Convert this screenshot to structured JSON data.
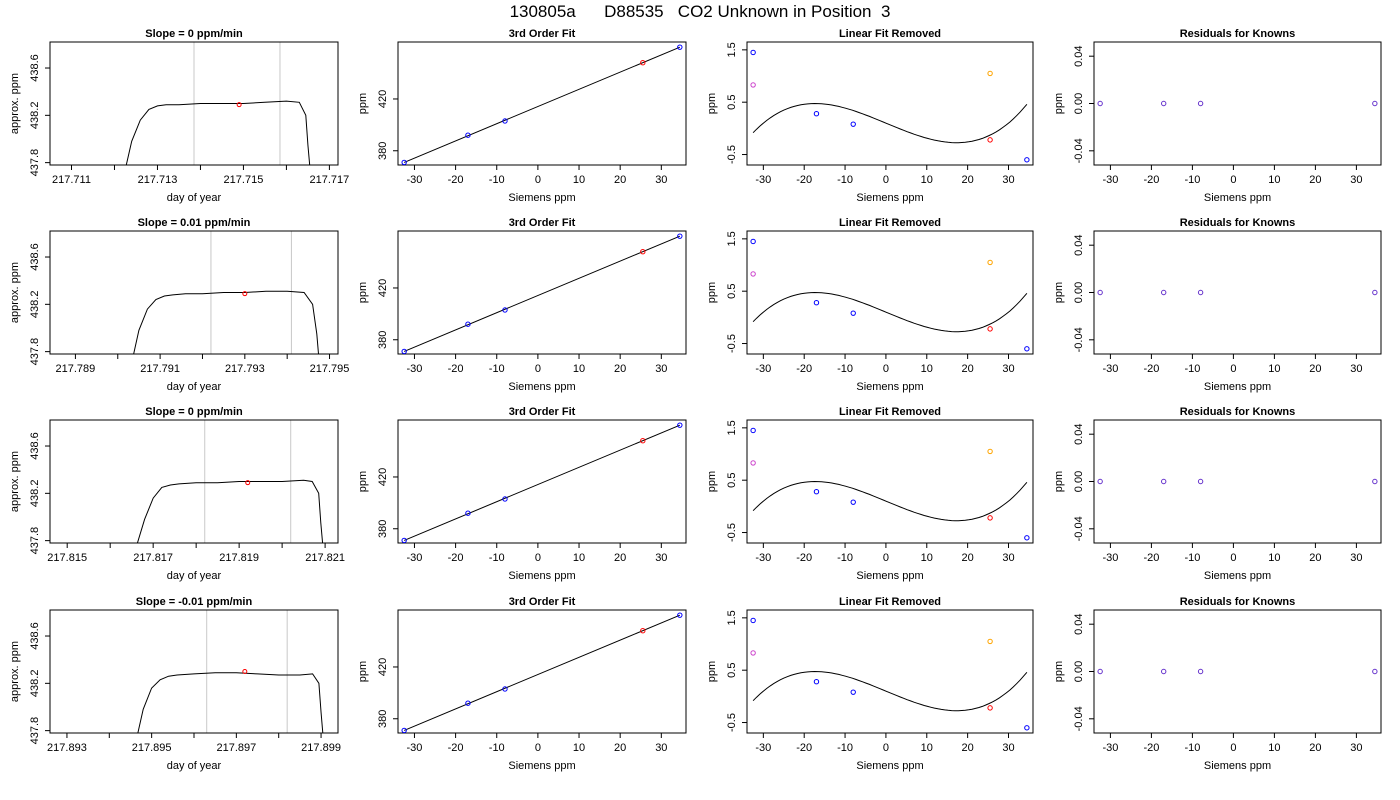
{
  "page_title": "130805a      D88535   CO2 Unknown in Position  3",
  "chart_data": [
    {
      "type": "line",
      "title": "Slope =  0  ppm/min",
      "xlabel": "day of year",
      "ylabel": "approx. ppm",
      "xlim": [
        217.7105,
        217.7172
      ],
      "ylim": [
        437.78,
        438.82
      ],
      "xticks": [
        217.711,
        217.712,
        217.713,
        217.714,
        217.715,
        217.716,
        217.717
      ],
      "xtick_labels": [
        "217.711",
        "",
        "217.713",
        "",
        "217.715",
        "",
        "217.717"
      ],
      "yticks": [
        437.8,
        438.2,
        438.6
      ],
      "ytick_labels": [
        "437.8",
        "438.2",
        "438.6"
      ],
      "vlines": [
        217.71385,
        217.71585
      ],
      "marker": [
        217.7149,
        438.29
      ],
      "series": [
        {
          "x": [
            217.71225,
            217.7124,
            217.7126,
            217.7128,
            217.713,
            217.7132,
            217.7135,
            217.714,
            217.7145,
            217.715,
            217.7155,
            217.716,
            217.7163,
            217.71645,
            217.7165,
            217.71655
          ],
          "y": [
            437.74,
            437.98,
            438.16,
            438.25,
            438.28,
            438.29,
            438.29,
            438.3,
            438.3,
            438.3,
            438.31,
            438.32,
            438.31,
            438.2,
            437.95,
            437.74
          ]
        }
      ]
    },
    {
      "type": "scatter",
      "title": "3rd Order Fit",
      "xlabel": "Siemens ppm",
      "ylabel": "ppm",
      "xlim": [
        -34,
        36
      ],
      "ylim": [
        369,
        464
      ],
      "xticks": [
        -30,
        -20,
        -10,
        0,
        10,
        20,
        30
      ],
      "yticks": [
        380,
        420
      ],
      "fit_line": {
        "x": [
          -32.5,
          34.5
        ],
        "y": [
          371,
          460
        ]
      },
      "points": [
        {
          "x": -32.5,
          "y": 371,
          "color": "#0000ff"
        },
        {
          "x": -17,
          "y": 392,
          "color": "#0000ff"
        },
        {
          "x": -8,
          "y": 403,
          "color": "#0000ff"
        },
        {
          "x": 25.5,
          "y": 448,
          "color": "#ff0000"
        },
        {
          "x": 34.5,
          "y": 460,
          "color": "#0000ff"
        }
      ]
    },
    {
      "type": "scatter",
      "title": "Linear Fit Removed",
      "xlabel": "Siemens ppm",
      "ylabel": "ppm",
      "xlim": [
        -34,
        36
      ],
      "ylim": [
        -0.7,
        1.65
      ],
      "xticks": [
        -30,
        -20,
        -10,
        0,
        10,
        20,
        30
      ],
      "yticks": [
        -0.5,
        0.5,
        1.5
      ],
      "curve": {
        "a": 3.6e-05,
        "c": -0.0324,
        "d": 0.1
      },
      "points": [
        {
          "x": -32.5,
          "y": 1.45,
          "color": "#0000ff"
        },
        {
          "x": -32.5,
          "y": 0.83,
          "color": "#cc44cc"
        },
        {
          "x": -17,
          "y": 0.28,
          "color": "#0000ff"
        },
        {
          "x": -8,
          "y": 0.08,
          "color": "#0000ff"
        },
        {
          "x": 25.5,
          "y": -0.22,
          "color": "#ff0000"
        },
        {
          "x": 25.5,
          "y": 1.05,
          "color": "#ffa500"
        },
        {
          "x": 34.5,
          "y": -0.6,
          "color": "#0000ff"
        }
      ]
    },
    {
      "type": "scatter",
      "title": "Residuals for Knowns",
      "xlabel": "Siemens ppm",
      "ylabel": "ppm",
      "xlim": [
        -34,
        36
      ],
      "ylim": [
        -0.052,
        0.052
      ],
      "xticks": [
        -30,
        -20,
        -10,
        0,
        10,
        20,
        30
      ],
      "yticks": [
        -0.04,
        0,
        0.04
      ],
      "ytick_labels": [
        "-0.04",
        "0.00",
        "0.04"
      ],
      "points": [
        {
          "x": -32.5,
          "y": 0,
          "color": "#6633cc"
        },
        {
          "x": -17,
          "y": 0,
          "color": "#6633cc"
        },
        {
          "x": -8,
          "y": 0,
          "color": "#6633cc"
        },
        {
          "x": 34.5,
          "y": 0,
          "color": "#6633cc"
        }
      ]
    },
    {
      "type": "line",
      "title": "Slope =  0.01  ppm/min",
      "xlabel": "day of year",
      "ylabel": "approx. ppm",
      "xlim": [
        217.7884,
        217.7952
      ],
      "ylim": [
        437.78,
        438.82
      ],
      "xticks": [
        217.789,
        217.79,
        217.791,
        217.792,
        217.793,
        217.794,
        217.795
      ],
      "xtick_labels": [
        "217.789",
        "",
        "217.791",
        "",
        "217.793",
        "",
        "217.795"
      ],
      "yticks": [
        437.8,
        438.2,
        438.6
      ],
      "ytick_labels": [
        "437.8",
        "438.2",
        "438.6"
      ],
      "vlines": [
        217.7922,
        217.7941
      ],
      "marker": [
        217.793,
        438.29
      ],
      "series": [
        {
          "x": [
            217.79035,
            217.7905,
            217.7907,
            217.7909,
            217.7911,
            217.7913,
            217.7916,
            217.792,
            217.7925,
            217.793,
            217.7935,
            217.794,
            217.7944,
            217.7946,
            217.7947,
            217.79475
          ],
          "y": [
            437.74,
            437.98,
            438.16,
            438.24,
            438.27,
            438.28,
            438.29,
            438.29,
            438.3,
            438.3,
            438.31,
            438.31,
            438.3,
            438.2,
            437.95,
            437.74
          ]
        }
      ]
    },
    {
      "type": "scatter",
      "title": "3rd Order Fit",
      "xlabel": "Siemens ppm",
      "ylabel": "ppm",
      "xlim": [
        -34,
        36
      ],
      "ylim": [
        369,
        464
      ],
      "xticks": [
        -30,
        -20,
        -10,
        0,
        10,
        20,
        30
      ],
      "yticks": [
        380,
        420
      ],
      "fit_line": {
        "x": [
          -32.5,
          34.5
        ],
        "y": [
          371,
          460
        ]
      },
      "points": [
        {
          "x": -32.5,
          "y": 371,
          "color": "#0000ff"
        },
        {
          "x": -17,
          "y": 392,
          "color": "#0000ff"
        },
        {
          "x": -8,
          "y": 403,
          "color": "#0000ff"
        },
        {
          "x": 25.5,
          "y": 448,
          "color": "#ff0000"
        },
        {
          "x": 34.5,
          "y": 460,
          "color": "#0000ff"
        }
      ]
    },
    {
      "type": "scatter",
      "title": "Linear Fit Removed",
      "xlabel": "Siemens ppm",
      "ylabel": "ppm",
      "xlim": [
        -34,
        36
      ],
      "ylim": [
        -0.7,
        1.65
      ],
      "xticks": [
        -30,
        -20,
        -10,
        0,
        10,
        20,
        30
      ],
      "yticks": [
        -0.5,
        0.5,
        1.5
      ],
      "curve": {
        "a": 3.6e-05,
        "c": -0.0324,
        "d": 0.1
      },
      "points": [
        {
          "x": -32.5,
          "y": 1.45,
          "color": "#0000ff"
        },
        {
          "x": -32.5,
          "y": 0.83,
          "color": "#cc44cc"
        },
        {
          "x": -17,
          "y": 0.28,
          "color": "#0000ff"
        },
        {
          "x": -8,
          "y": 0.08,
          "color": "#0000ff"
        },
        {
          "x": 25.5,
          "y": -0.22,
          "color": "#ff0000"
        },
        {
          "x": 25.5,
          "y": 1.05,
          "color": "#ffa500"
        },
        {
          "x": 34.5,
          "y": -0.6,
          "color": "#0000ff"
        }
      ]
    },
    {
      "type": "scatter",
      "title": "Residuals for Knowns",
      "xlabel": "Siemens ppm",
      "ylabel": "ppm",
      "xlim": [
        -34,
        36
      ],
      "ylim": [
        -0.052,
        0.052
      ],
      "xticks": [
        -30,
        -20,
        -10,
        0,
        10,
        20,
        30
      ],
      "yticks": [
        -0.04,
        0,
        0.04
      ],
      "ytick_labels": [
        "-0.04",
        "0.00",
        "0.04"
      ],
      "points": [
        {
          "x": -32.5,
          "y": 0,
          "color": "#6633cc"
        },
        {
          "x": -17,
          "y": 0,
          "color": "#6633cc"
        },
        {
          "x": -8,
          "y": 0,
          "color": "#6633cc"
        },
        {
          "x": 34.5,
          "y": 0,
          "color": "#6633cc"
        }
      ]
    },
    {
      "type": "line",
      "title": "Slope =  0  ppm/min",
      "xlabel": "day of year",
      "ylabel": "approx. ppm",
      "xlim": [
        217.8146,
        217.8213
      ],
      "ylim": [
        437.78,
        438.82
      ],
      "xticks": [
        217.815,
        217.816,
        217.817,
        217.818,
        217.819,
        217.82,
        217.821
      ],
      "xtick_labels": [
        "217.815",
        "",
        "217.817",
        "",
        "217.819",
        "",
        "217.821"
      ],
      "yticks": [
        437.8,
        438.2,
        438.6
      ],
      "ytick_labels": [
        "437.8",
        "438.2",
        "438.6"
      ],
      "vlines": [
        217.8182,
        217.8202
      ],
      "marker": [
        217.8192,
        438.29
      ],
      "series": [
        {
          "x": [
            217.8166,
            217.8168,
            217.817,
            217.8172,
            217.8174,
            217.8176,
            217.818,
            217.8185,
            217.819,
            217.8195,
            217.82,
            217.8205,
            217.8207,
            217.82085,
            217.8209,
            217.82095
          ],
          "y": [
            437.74,
            437.98,
            438.16,
            438.25,
            438.27,
            438.28,
            438.29,
            438.29,
            438.3,
            438.3,
            438.3,
            438.31,
            438.3,
            438.2,
            437.95,
            437.74
          ]
        }
      ]
    },
    {
      "type": "scatter",
      "title": "3rd Order Fit",
      "xlabel": "Siemens ppm",
      "ylabel": "ppm",
      "xlim": [
        -34,
        36
      ],
      "ylim": [
        369,
        464
      ],
      "xticks": [
        -30,
        -20,
        -10,
        0,
        10,
        20,
        30
      ],
      "yticks": [
        380,
        420
      ],
      "fit_line": {
        "x": [
          -32.5,
          34.5
        ],
        "y": [
          371,
          460
        ]
      },
      "points": [
        {
          "x": -32.5,
          "y": 371,
          "color": "#0000ff"
        },
        {
          "x": -17,
          "y": 392,
          "color": "#0000ff"
        },
        {
          "x": -8,
          "y": 403,
          "color": "#0000ff"
        },
        {
          "x": 25.5,
          "y": 448,
          "color": "#ff0000"
        },
        {
          "x": 34.5,
          "y": 460,
          "color": "#0000ff"
        }
      ]
    },
    {
      "type": "scatter",
      "title": "Linear Fit Removed",
      "xlabel": "Siemens ppm",
      "ylabel": "ppm",
      "xlim": [
        -34,
        36
      ],
      "ylim": [
        -0.7,
        1.65
      ],
      "xticks": [
        -30,
        -20,
        -10,
        0,
        10,
        20,
        30
      ],
      "yticks": [
        -0.5,
        0.5,
        1.5
      ],
      "curve": {
        "a": 3.6e-05,
        "c": -0.0324,
        "d": 0.1
      },
      "points": [
        {
          "x": -32.5,
          "y": 1.45,
          "color": "#0000ff"
        },
        {
          "x": -32.5,
          "y": 0.83,
          "color": "#cc44cc"
        },
        {
          "x": -17,
          "y": 0.28,
          "color": "#0000ff"
        },
        {
          "x": -8,
          "y": 0.08,
          "color": "#0000ff"
        },
        {
          "x": 25.5,
          "y": -0.22,
          "color": "#ff0000"
        },
        {
          "x": 25.5,
          "y": 1.05,
          "color": "#ffa500"
        },
        {
          "x": 34.5,
          "y": -0.6,
          "color": "#0000ff"
        }
      ]
    },
    {
      "type": "scatter",
      "title": "Residuals for Knowns",
      "xlabel": "Siemens ppm",
      "ylabel": "ppm",
      "xlim": [
        -34,
        36
      ],
      "ylim": [
        -0.052,
        0.052
      ],
      "xticks": [
        -30,
        -20,
        -10,
        0,
        10,
        20,
        30
      ],
      "yticks": [
        -0.04,
        0,
        0.04
      ],
      "ytick_labels": [
        "-0.04",
        "0.00",
        "0.04"
      ],
      "points": [
        {
          "x": -32.5,
          "y": 0,
          "color": "#6633cc"
        },
        {
          "x": -17,
          "y": 0,
          "color": "#6633cc"
        },
        {
          "x": -8,
          "y": 0,
          "color": "#6633cc"
        },
        {
          "x": 34.5,
          "y": 0,
          "color": "#6633cc"
        }
      ]
    },
    {
      "type": "line",
      "title": "Slope =  -0.01  ppm/min",
      "xlabel": "day of year",
      "ylabel": "approx. ppm",
      "xlim": [
        217.8926,
        217.8994
      ],
      "ylim": [
        437.78,
        438.82
      ],
      "xticks": [
        217.893,
        217.894,
        217.895,
        217.896,
        217.897,
        217.898,
        217.899
      ],
      "xtick_labels": [
        "217.893",
        "",
        "217.895",
        "",
        "217.897",
        "",
        "217.899"
      ],
      "yticks": [
        437.8,
        438.2,
        438.6
      ],
      "ytick_labels": [
        "437.8",
        "438.2",
        "438.6"
      ],
      "vlines": [
        217.8963,
        217.8982
      ],
      "marker": [
        217.8972,
        438.3
      ],
      "series": [
        {
          "x": [
            217.89465,
            217.8948,
            217.895,
            217.8952,
            217.8954,
            217.8956,
            217.896,
            217.8965,
            217.897,
            217.8975,
            217.898,
            217.8985,
            217.8988,
            217.89895,
            217.899,
            217.89905
          ],
          "y": [
            437.74,
            437.98,
            438.16,
            438.23,
            438.26,
            438.27,
            438.28,
            438.29,
            438.29,
            438.28,
            438.27,
            438.27,
            438.28,
            438.2,
            437.95,
            437.74
          ]
        }
      ]
    },
    {
      "type": "scatter",
      "title": "3rd Order Fit",
      "xlabel": "Siemens ppm",
      "ylabel": "ppm",
      "xlim": [
        -34,
        36
      ],
      "ylim": [
        369,
        464
      ],
      "xticks": [
        -30,
        -20,
        -10,
        0,
        10,
        20,
        30
      ],
      "yticks": [
        380,
        420
      ],
      "fit_line": {
        "x": [
          -32.5,
          34.5
        ],
        "y": [
          371,
          460
        ]
      },
      "points": [
        {
          "x": -32.5,
          "y": 371,
          "color": "#0000ff"
        },
        {
          "x": -17,
          "y": 392,
          "color": "#0000ff"
        },
        {
          "x": -8,
          "y": 403,
          "color": "#0000ff"
        },
        {
          "x": 25.5,
          "y": 448,
          "color": "#ff0000"
        },
        {
          "x": 34.5,
          "y": 460,
          "color": "#0000ff"
        }
      ]
    },
    {
      "type": "scatter",
      "title": "Linear Fit Removed",
      "xlabel": "Siemens ppm",
      "ylabel": "ppm",
      "xlim": [
        -34,
        36
      ],
      "ylim": [
        -0.7,
        1.65
      ],
      "xticks": [
        -30,
        -20,
        -10,
        0,
        10,
        20,
        30
      ],
      "yticks": [
        -0.5,
        0.5,
        1.5
      ],
      "curve": {
        "a": 3.6e-05,
        "c": -0.0324,
        "d": 0.1
      },
      "points": [
        {
          "x": -32.5,
          "y": 1.45,
          "color": "#0000ff"
        },
        {
          "x": -32.5,
          "y": 0.83,
          "color": "#cc44cc"
        },
        {
          "x": -17,
          "y": 0.28,
          "color": "#0000ff"
        },
        {
          "x": -8,
          "y": 0.08,
          "color": "#0000ff"
        },
        {
          "x": 25.5,
          "y": -0.22,
          "color": "#ff0000"
        },
        {
          "x": 25.5,
          "y": 1.05,
          "color": "#ffa500"
        },
        {
          "x": 34.5,
          "y": -0.6,
          "color": "#0000ff"
        }
      ]
    },
    {
      "type": "scatter",
      "title": "Residuals for Knowns",
      "xlabel": "Siemens ppm",
      "ylabel": "ppm",
      "xlim": [
        -34,
        36
      ],
      "ylim": [
        -0.052,
        0.052
      ],
      "xticks": [
        -30,
        -20,
        -10,
        0,
        10,
        20,
        30
      ],
      "yticks": [
        -0.04,
        0,
        0.04
      ],
      "ytick_labels": [
        "-0.04",
        "0.00",
        "0.04"
      ],
      "points": [
        {
          "x": -32.5,
          "y": 0,
          "color": "#6633cc"
        },
        {
          "x": -17,
          "y": 0,
          "color": "#6633cc"
        },
        {
          "x": -8,
          "y": 0,
          "color": "#6633cc"
        },
        {
          "x": 34.5,
          "y": 0,
          "color": "#6633cc"
        }
      ]
    }
  ]
}
